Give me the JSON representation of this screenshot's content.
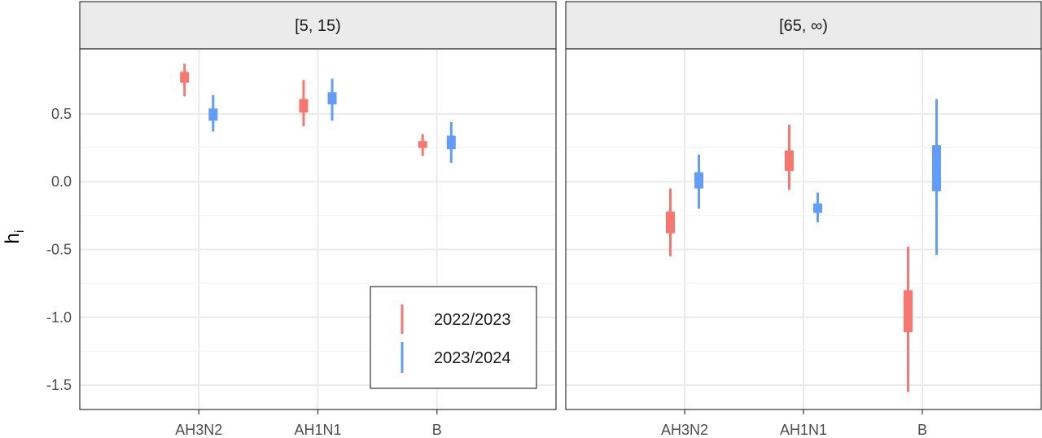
{
  "chart_data": {
    "type": "errorbar",
    "ylabel": "h",
    "ylabel_subscript": "i",
    "categories": [
      "AH3N2",
      "AH1N1",
      "B"
    ],
    "y_ticks": [
      0.5,
      0.0,
      -0.5,
      -1.0,
      -1.5
    ],
    "y_tick_labels": [
      "0.5",
      "0.0",
      "-0.5",
      "-1.0",
      "-1.5"
    ],
    "ylim": [
      -1.68,
      0.98
    ],
    "grid": true,
    "legend_position": "bottom-right of left panel",
    "series": [
      {
        "name": "2022/2023",
        "color": "#F8766D"
      },
      {
        "name": "2023/2024",
        "color": "#619CFF"
      }
    ],
    "panels": [
      {
        "title": "[5, 15)",
        "points": [
          {
            "category": "AH3N2",
            "series": "2022/2023",
            "low": 0.63,
            "q1": 0.73,
            "q3": 0.81,
            "high": 0.87
          },
          {
            "category": "AH3N2",
            "series": "2023/2024",
            "low": 0.37,
            "q1": 0.45,
            "q3": 0.54,
            "high": 0.64
          },
          {
            "category": "AH1N1",
            "series": "2022/2023",
            "low": 0.41,
            "q1": 0.51,
            "q3": 0.61,
            "high": 0.75
          },
          {
            "category": "AH1N1",
            "series": "2023/2024",
            "low": 0.45,
            "q1": 0.57,
            "q3": 0.66,
            "high": 0.76
          },
          {
            "category": "B",
            "series": "2022/2023",
            "low": 0.19,
            "q1": 0.25,
            "q3": 0.3,
            "high": 0.35
          },
          {
            "category": "B",
            "series": "2023/2024",
            "low": 0.14,
            "q1": 0.24,
            "q3": 0.34,
            "high": 0.44
          }
        ]
      },
      {
        "title": "[65, ∞)",
        "points": [
          {
            "category": "AH3N2",
            "series": "2022/2023",
            "low": -0.55,
            "q1": -0.38,
            "q3": -0.22,
            "high": -0.05
          },
          {
            "category": "AH3N2",
            "series": "2023/2024",
            "low": -0.2,
            "q1": -0.05,
            "q3": 0.07,
            "high": 0.2
          },
          {
            "category": "AH1N1",
            "series": "2022/2023",
            "low": -0.06,
            "q1": 0.08,
            "q3": 0.23,
            "high": 0.42
          },
          {
            "category": "AH1N1",
            "series": "2023/2024",
            "low": -0.3,
            "q1": -0.23,
            "q3": -0.16,
            "high": -0.08
          },
          {
            "category": "B",
            "series": "2022/2023",
            "low": -1.55,
            "q1": -1.11,
            "q3": -0.8,
            "high": -0.48
          },
          {
            "category": "B",
            "series": "2023/2024",
            "low": -0.54,
            "q1": -0.07,
            "q3": 0.27,
            "high": 0.61
          }
        ]
      }
    ]
  }
}
